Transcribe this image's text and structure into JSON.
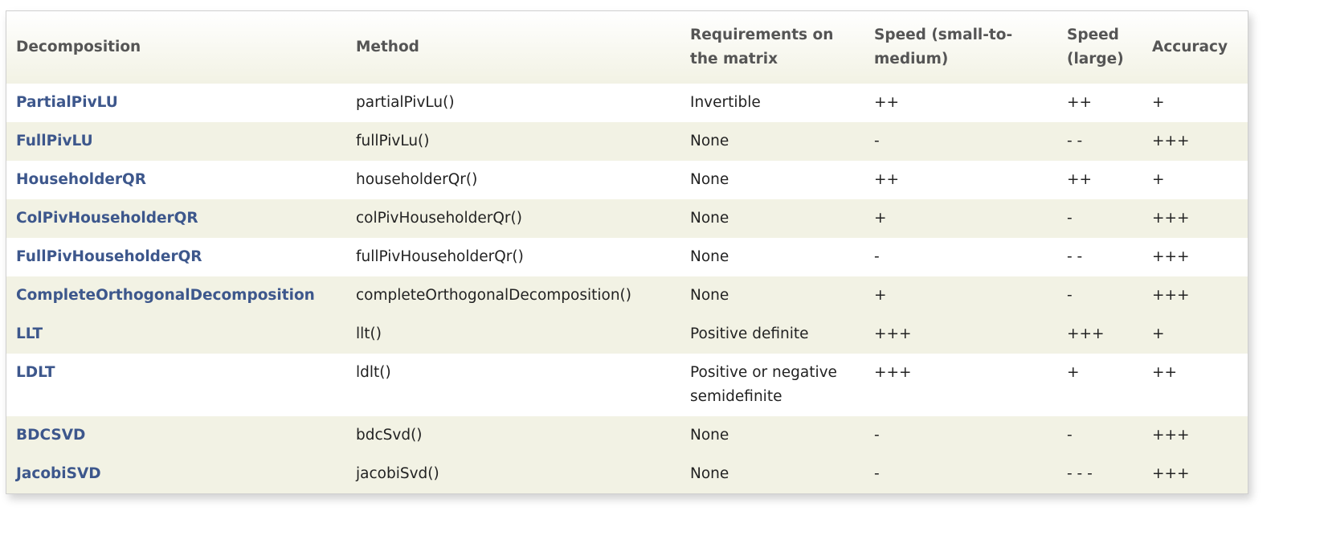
{
  "headers": [
    "Decomposition",
    "Method",
    "Requirements on the matrix",
    "Speed (small-to-medium)",
    "Speed (large)",
    "Accuracy"
  ],
  "rows": [
    {
      "decomposition": "PartialPivLU",
      "method": "partialPivLu()",
      "requirements": "Invertible",
      "speed_small": "++",
      "speed_large": "++",
      "accuracy": "+",
      "shaded": false
    },
    {
      "decomposition": "FullPivLU",
      "method": "fullPivLu()",
      "requirements": "None",
      "speed_small": "-",
      "speed_large": "- -",
      "accuracy": "+++",
      "shaded": true
    },
    {
      "decomposition": "HouseholderQR",
      "method": "householderQr()",
      "requirements": "None",
      "speed_small": "++",
      "speed_large": "++",
      "accuracy": "+",
      "shaded": false
    },
    {
      "decomposition": "ColPivHouseholderQR",
      "method": "colPivHouseholderQr()",
      "requirements": "None",
      "speed_small": "+",
      "speed_large": "-",
      "accuracy": "+++",
      "shaded": true
    },
    {
      "decomposition": "FullPivHouseholderQR",
      "method": "fullPivHouseholderQr()",
      "requirements": "None",
      "speed_small": "-",
      "speed_large": "- -",
      "accuracy": "+++",
      "shaded": false
    },
    {
      "decomposition": "CompleteOrthogonalDecomposition",
      "method": "completeOrthogonalDecomposition()",
      "requirements": "None",
      "speed_small": "+",
      "speed_large": "-",
      "accuracy": "+++",
      "shaded": true
    },
    {
      "decomposition": "LLT",
      "method": "llt()",
      "requirements": "Positive definite",
      "speed_small": "+++",
      "speed_large": "+++",
      "accuracy": "+",
      "shaded": true
    },
    {
      "decomposition": "LDLT",
      "method": "ldlt()",
      "requirements": "Positive or negative semidefinite",
      "speed_small": "+++",
      "speed_large": "+",
      "accuracy": "++",
      "shaded": false
    },
    {
      "decomposition": "BDCSVD",
      "method": "bdcSvd()",
      "requirements": "None",
      "speed_small": "-",
      "speed_large": "-",
      "accuracy": "+++",
      "shaded": true
    },
    {
      "decomposition": "JacobiSVD",
      "method": "jacobiSvd()",
      "requirements": "None",
      "speed_small": "-",
      "speed_large": "- - -",
      "accuracy": "+++",
      "shaded": true
    }
  ],
  "colors": {
    "link": "#3d578c",
    "row_shade": "#f2f2e4",
    "header_text": "#555555"
  }
}
